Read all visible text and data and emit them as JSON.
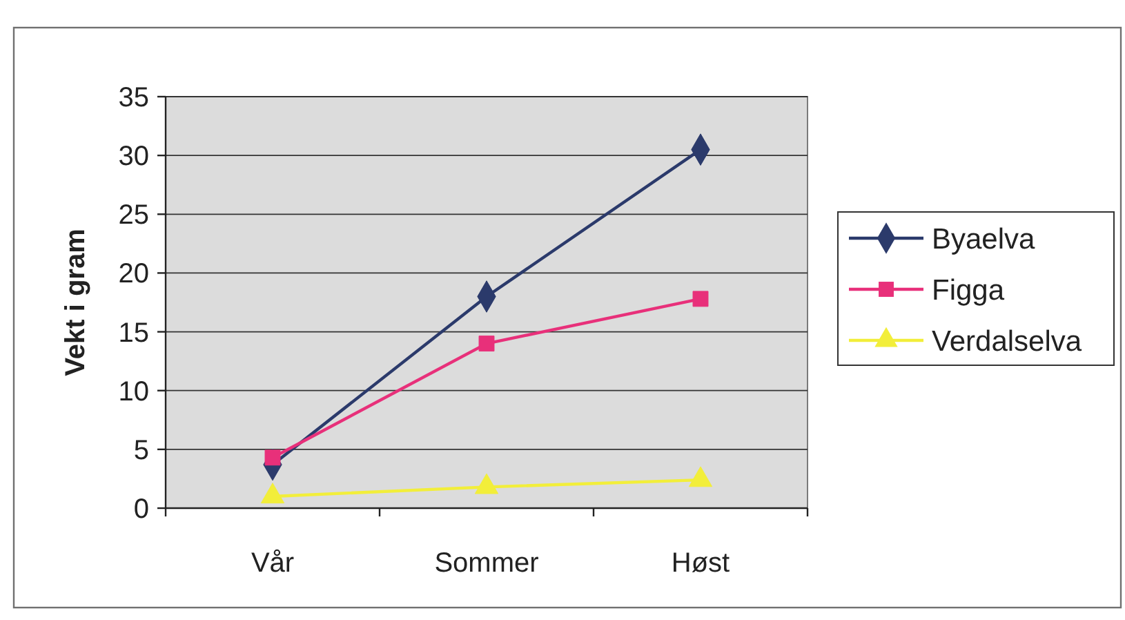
{
  "chart_data": {
    "type": "line",
    "ylabel": "Vekt i gram",
    "categories": [
      "Vår",
      "Sommer",
      "Høst"
    ],
    "series": [
      {
        "name": "Byaelva",
        "color": "#2b3a6b",
        "marker": "diamond",
        "values": [
          3.7,
          18,
          30.5
        ]
      },
      {
        "name": "Figga",
        "color": "#e8307a",
        "marker": "square",
        "values": [
          4.3,
          14,
          17.8
        ]
      },
      {
        "name": "Verdalselva",
        "color": "#f2ee3a",
        "marker": "triangle",
        "values": [
          1,
          1.8,
          2.4
        ]
      }
    ],
    "ylim": [
      0,
      35
    ],
    "yticks": [
      0,
      5,
      10,
      15,
      20,
      25,
      30,
      35
    ],
    "grid": "y",
    "legend": "right",
    "line_style": "solid"
  }
}
